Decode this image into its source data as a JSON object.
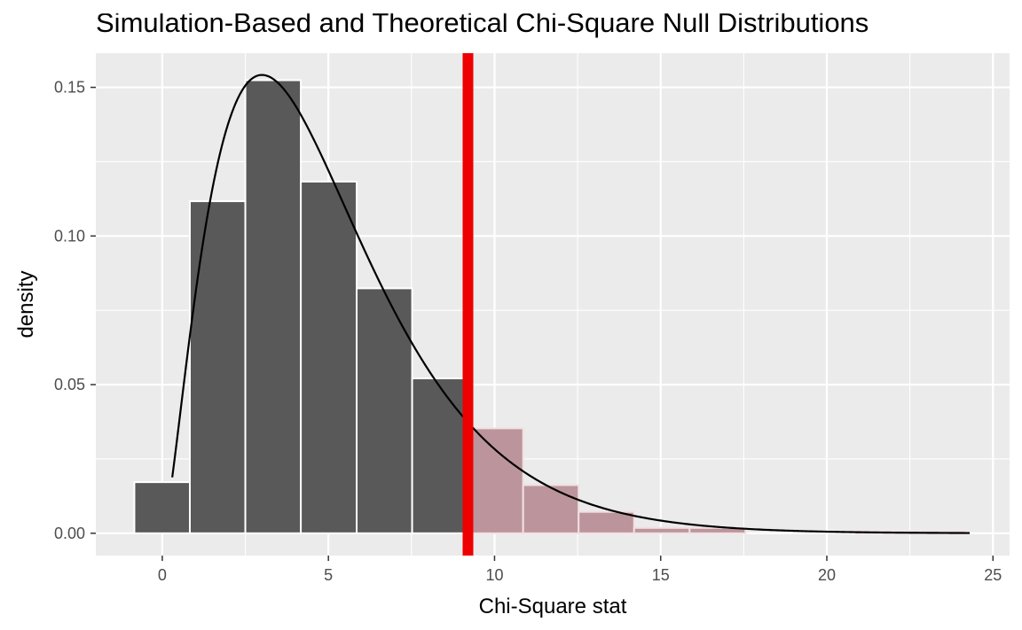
{
  "chart_data": {
    "type": "bar",
    "title": "Simulation-Based and Theoretical Chi-Square Null Distributions",
    "xlabel": "Chi-Square stat",
    "ylabel": "density",
    "xlim": [
      -2,
      25.5
    ],
    "ylim": [
      -0.0075,
      0.1615
    ],
    "x_ticks": [
      0,
      5,
      10,
      15,
      20,
      25
    ],
    "x_tick_labels": [
      "0",
      "5",
      "10",
      "15",
      "20",
      "25"
    ],
    "y_ticks": [
      0.0,
      0.05,
      0.1,
      0.15
    ],
    "y_tick_labels": [
      "0.00",
      "0.05",
      "0.10",
      "0.15"
    ],
    "grid": true,
    "histogram": {
      "bins": [
        {
          "start": -0.84,
          "end": 0.83,
          "density": 0.0172,
          "shaded": false
        },
        {
          "start": 0.83,
          "end": 2.5,
          "density": 0.1117,
          "shaded": false
        },
        {
          "start": 2.5,
          "end": 4.17,
          "density": 0.1524,
          "shaded": false
        },
        {
          "start": 4.17,
          "end": 5.85,
          "density": 0.1183,
          "shaded": false
        },
        {
          "start": 5.85,
          "end": 7.52,
          "density": 0.0824,
          "shaded": false
        },
        {
          "start": 7.52,
          "end": 9.19,
          "density": 0.0521,
          "shaded": false
        },
        {
          "start": 9.19,
          "end": 10.86,
          "density": 0.0353,
          "shaded": true
        },
        {
          "start": 10.86,
          "end": 12.53,
          "density": 0.0162,
          "shaded": true
        },
        {
          "start": 12.53,
          "end": 14.2,
          "density": 0.0072,
          "shaded": true
        },
        {
          "start": 14.2,
          "end": 15.87,
          "density": 0.0018,
          "shaded": true
        },
        {
          "start": 15.87,
          "end": 17.55,
          "density": 0.0018,
          "shaded": true
        },
        {
          "start": 17.55,
          "end": 19.22,
          "density": 0.0,
          "shaded": true
        },
        {
          "start": 19.22,
          "end": 20.89,
          "density": 0.0,
          "shaded": true
        },
        {
          "start": 20.89,
          "end": 22.56,
          "density": 0.0006,
          "shaded": true
        },
        {
          "start": 22.56,
          "end": 24.23,
          "density": 0.0006,
          "shaded": true
        }
      ]
    },
    "theoretical_curve": {
      "distribution": "chi-square",
      "df": 5,
      "x_range": [
        0.3,
        24.3
      ]
    },
    "observed_stat": 9.2,
    "colors": {
      "panel_bg": "#ebebeb",
      "bar_fill": "#595959",
      "shaded_fill": "#bc959c",
      "shaded_stroke": "#f2dfe2",
      "obs_line": "#ee0000",
      "curve": "#000000",
      "grid": "#ffffff"
    }
  }
}
